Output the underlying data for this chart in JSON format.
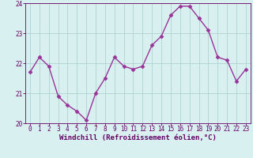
{
  "x": [
    0,
    1,
    2,
    3,
    4,
    5,
    6,
    7,
    8,
    9,
    10,
    11,
    12,
    13,
    14,
    15,
    16,
    17,
    18,
    19,
    20,
    21,
    22,
    23
  ],
  "y": [
    21.7,
    22.2,
    21.9,
    20.9,
    20.6,
    20.4,
    20.1,
    21.0,
    21.5,
    22.2,
    21.9,
    21.8,
    21.9,
    22.6,
    22.9,
    23.6,
    23.9,
    23.9,
    23.5,
    23.1,
    22.2,
    22.1,
    21.4,
    21.8
  ],
  "ylim": [
    20.0,
    24.0
  ],
  "xlim": [
    -0.5,
    23.5
  ],
  "yticks": [
    20,
    21,
    22,
    23,
    24
  ],
  "xticks": [
    0,
    1,
    2,
    3,
    4,
    5,
    6,
    7,
    8,
    9,
    10,
    11,
    12,
    13,
    14,
    15,
    16,
    17,
    18,
    19,
    20,
    21,
    22,
    23
  ],
  "xlabel": "Windchill (Refroidissement éolien,°C)",
  "line_color": "#993399",
  "marker_color": "#993399",
  "bg_color": "#d8f0f0",
  "grid_color": "#aacccc",
  "axis_color": "#660066",
  "tick_color": "#660066",
  "label_color": "#660066",
  "marker": "D",
  "markersize": 2.5,
  "linewidth": 1.0,
  "xlabel_fontsize": 6.5,
  "tick_fontsize": 5.5
}
